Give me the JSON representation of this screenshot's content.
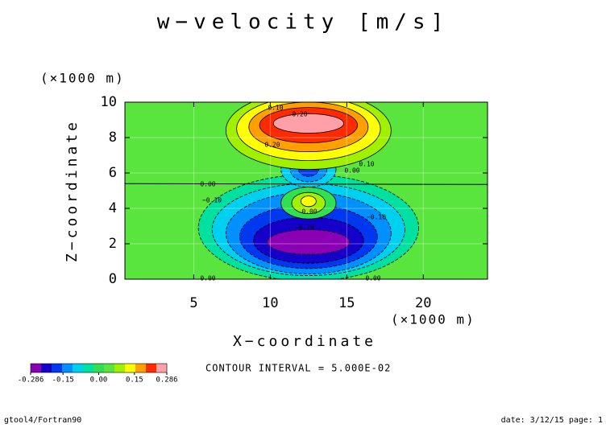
{
  "chart_data": {
    "type": "contour",
    "title": "w−velocity [m/s]",
    "x_label": "X−coordinate",
    "y_label": "Z−coordinate",
    "x_unit": "(×1000 m)",
    "y_unit": "(×1000 m)",
    "xlim": [
      0.5,
      24.2
    ],
    "ylim": [
      0,
      10
    ],
    "xticks": [
      5,
      10,
      15,
      20
    ],
    "yticks": [
      0,
      2,
      4,
      6,
      8,
      10
    ],
    "grid": true,
    "background_color": "#5ae43e",
    "contour_labels": [
      "0.10",
      "0.20",
      "0.20",
      "0.10",
      "0.00",
      "0.00",
      "0.00",
      "−0.10",
      "0.00",
      "−0.20",
      "−0.10",
      "0.00",
      "0.00"
    ],
    "colorbar": {
      "colors": [
        "#8a00b4",
        "#1400c8",
        "#0038f0",
        "#0090ff",
        "#00d0f0",
        "#00e0a0",
        "#30e050",
        "#5ae43e",
        "#a0f000",
        "#ffff00",
        "#ffa000",
        "#ff2a00",
        "#ffa0a8"
      ],
      "lim": [
        -0.286,
        0.286
      ],
      "ticks": [
        {
          "value": -0.286,
          "label": "-0.286"
        },
        {
          "value": -0.15,
          "label": "-0.15"
        },
        {
          "value": 0,
          "label": "0.00"
        },
        {
          "value": 0.15,
          "label": "0.15"
        },
        {
          "value": 0.286,
          "label": "0.286"
        }
      ]
    },
    "note": "CONTOUR INTERVAL = 5.000E-02",
    "footer_left": "gtool4/Fortran90",
    "footer_right": "date: 3/12/15 page: 1"
  }
}
